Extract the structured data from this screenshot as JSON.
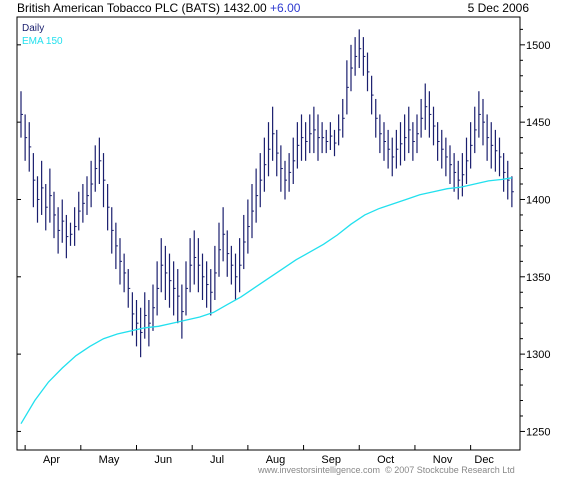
{
  "header": {
    "title": "British American Tobacco PLC (BATS)",
    "price": "1432.00",
    "change": "+6.00",
    "date": "5 Dec 2006"
  },
  "footer": {
    "left": "www.investorsintelligence.com",
    "right": "© 2007 Stockcube Research Ltd"
  },
  "chart_data": {
    "type": "line",
    "legend": [
      "Daily",
      "EMA 150"
    ],
    "legend_position": "top-left",
    "colors": {
      "daily": "#1a1f6e",
      "ema": "#22e0ee",
      "frame": "#000000"
    },
    "categories": [
      "Apr",
      "May",
      "Jun",
      "Jul",
      "Aug",
      "Sep",
      "Oct",
      "Nov",
      "Dec"
    ],
    "y_ticks": [
      1250,
      1300,
      1350,
      1400,
      1450,
      1500
    ],
    "ylim": [
      1238,
      1518
    ],
    "y_axis_side": "right",
    "grid": false,
    "series": [
      {
        "name": "Daily",
        "style": "ohlc bars",
        "points": [
          [
            0.0,
            1470,
            1440
          ],
          [
            0.6,
            1455,
            1425
          ],
          [
            1.2,
            1450,
            1418
          ],
          [
            1.8,
            1430,
            1395
          ],
          [
            2.4,
            1415,
            1385
          ],
          [
            3.0,
            1425,
            1390
          ],
          [
            3.6,
            1410,
            1380
          ],
          [
            4.2,
            1420,
            1385
          ],
          [
            4.8,
            1405,
            1375
          ],
          [
            5.4,
            1395,
            1365
          ],
          [
            6.0,
            1400,
            1372
          ],
          [
            6.6,
            1390,
            1362
          ],
          [
            7.2,
            1385,
            1370
          ],
          [
            7.8,
            1395,
            1370
          ],
          [
            8.4,
            1405,
            1380
          ],
          [
            9.0,
            1410,
            1385
          ],
          [
            9.6,
            1415,
            1390
          ],
          [
            10.2,
            1425,
            1395
          ],
          [
            10.8,
            1435,
            1405
          ],
          [
            11.4,
            1440,
            1410
          ],
          [
            12.0,
            1430,
            1395
          ],
          [
            12.6,
            1410,
            1380
          ],
          [
            13.2,
            1395,
            1365
          ],
          [
            13.8,
            1385,
            1355
          ],
          [
            14.4,
            1375,
            1345
          ],
          [
            15.0,
            1365,
            1340
          ],
          [
            15.6,
            1355,
            1330
          ],
          [
            16.2,
            1340,
            1312
          ],
          [
            16.8,
            1335,
            1305
          ],
          [
            17.4,
            1330,
            1298
          ],
          [
            18.0,
            1340,
            1310
          ],
          [
            18.6,
            1335,
            1305
          ],
          [
            19.2,
            1345,
            1315
          ],
          [
            19.8,
            1360,
            1325
          ],
          [
            20.4,
            1375,
            1340
          ],
          [
            21.0,
            1370,
            1335
          ],
          [
            21.6,
            1365,
            1330
          ],
          [
            22.2,
            1360,
            1325
          ],
          [
            22.8,
            1355,
            1320
          ],
          [
            23.4,
            1345,
            1310
          ],
          [
            24.0,
            1360,
            1325
          ],
          [
            24.6,
            1375,
            1340
          ],
          [
            25.2,
            1380,
            1345
          ],
          [
            25.8,
            1375,
            1340
          ],
          [
            26.4,
            1365,
            1335
          ],
          [
            27.0,
            1360,
            1330
          ],
          [
            27.6,
            1355,
            1325
          ],
          [
            28.2,
            1370,
            1335
          ],
          [
            28.8,
            1385,
            1350
          ],
          [
            29.4,
            1395,
            1360
          ],
          [
            30.0,
            1380,
            1350
          ],
          [
            30.6,
            1370,
            1345
          ],
          [
            31.2,
            1365,
            1335
          ],
          [
            31.8,
            1375,
            1340
          ],
          [
            32.4,
            1390,
            1355
          ],
          [
            33.0,
            1400,
            1365
          ],
          [
            33.6,
            1410,
            1375
          ],
          [
            34.2,
            1420,
            1385
          ],
          [
            34.8,
            1430,
            1395
          ],
          [
            35.4,
            1440,
            1405
          ],
          [
            36.0,
            1450,
            1415
          ],
          [
            36.6,
            1460,
            1425
          ],
          [
            37.2,
            1445,
            1415
          ],
          [
            37.8,
            1435,
            1405
          ],
          [
            38.4,
            1425,
            1400
          ],
          [
            39.0,
            1430,
            1405
          ],
          [
            39.6,
            1440,
            1410
          ],
          [
            40.2,
            1450,
            1420
          ],
          [
            40.8,
            1455,
            1425
          ],
          [
            41.4,
            1450,
            1425
          ],
          [
            42.0,
            1455,
            1430
          ],
          [
            42.6,
            1460,
            1430
          ],
          [
            43.2,
            1455,
            1425
          ],
          [
            43.8,
            1450,
            1430
          ],
          [
            44.4,
            1445,
            1430
          ],
          [
            45.0,
            1450,
            1432
          ],
          [
            45.6,
            1445,
            1428
          ],
          [
            46.2,
            1455,
            1435
          ],
          [
            46.8,
            1465,
            1440
          ],
          [
            47.4,
            1490,
            1455
          ],
          [
            48.0,
            1500,
            1470
          ],
          [
            48.6,
            1505,
            1480
          ],
          [
            49.2,
            1510,
            1485
          ],
          [
            49.8,
            1505,
            1480
          ],
          [
            50.4,
            1495,
            1470
          ],
          [
            51.0,
            1480,
            1455
          ],
          [
            51.6,
            1465,
            1440
          ],
          [
            52.2,
            1455,
            1430
          ],
          [
            52.8,
            1450,
            1425
          ],
          [
            53.4,
            1445,
            1420
          ],
          [
            54.0,
            1440,
            1415
          ],
          [
            54.6,
            1445,
            1420
          ],
          [
            55.2,
            1450,
            1422
          ],
          [
            55.8,
            1455,
            1425
          ],
          [
            56.4,
            1460,
            1430
          ],
          [
            57.0,
            1450,
            1425
          ],
          [
            57.6,
            1455,
            1430
          ],
          [
            58.2,
            1465,
            1440
          ],
          [
            58.8,
            1475,
            1445
          ],
          [
            59.4,
            1470,
            1440
          ],
          [
            60.0,
            1460,
            1435
          ],
          [
            60.6,
            1450,
            1425
          ],
          [
            61.2,
            1445,
            1420
          ],
          [
            61.8,
            1440,
            1415
          ],
          [
            62.4,
            1435,
            1410
          ],
          [
            63.0,
            1430,
            1405
          ],
          [
            63.6,
            1425,
            1400
          ],
          [
            64.2,
            1430,
            1402
          ],
          [
            64.8,
            1440,
            1410
          ],
          [
            65.4,
            1450,
            1420
          ],
          [
            66.0,
            1460,
            1430
          ],
          [
            66.6,
            1470,
            1440
          ],
          [
            67.2,
            1465,
            1435
          ],
          [
            67.8,
            1455,
            1425
          ],
          [
            68.4,
            1450,
            1420
          ],
          [
            69.0,
            1445,
            1418
          ],
          [
            69.6,
            1440,
            1415
          ],
          [
            70.2,
            1430,
            1405
          ],
          [
            70.8,
            1425,
            1400
          ],
          [
            71.4,
            1415,
            1395
          ]
        ]
      },
      {
        "name": "EMA 150",
        "style": "line",
        "points": [
          [
            0,
            1255
          ],
          [
            2,
            1270
          ],
          [
            4,
            1282
          ],
          [
            6,
            1291
          ],
          [
            8,
            1299
          ],
          [
            10,
            1305
          ],
          [
            12,
            1310
          ],
          [
            14,
            1313
          ],
          [
            16,
            1315
          ],
          [
            18,
            1317
          ],
          [
            20,
            1318
          ],
          [
            22,
            1320
          ],
          [
            24,
            1322
          ],
          [
            26,
            1324
          ],
          [
            28,
            1327
          ],
          [
            30,
            1332
          ],
          [
            32,
            1337
          ],
          [
            34,
            1343
          ],
          [
            36,
            1349
          ],
          [
            38,
            1355
          ],
          [
            40,
            1361
          ],
          [
            42,
            1366
          ],
          [
            44,
            1371
          ],
          [
            46,
            1377
          ],
          [
            48,
            1384
          ],
          [
            50,
            1390
          ],
          [
            52,
            1394
          ],
          [
            54,
            1397
          ],
          [
            56,
            1400
          ],
          [
            58,
            1403
          ],
          [
            60,
            1405
          ],
          [
            62,
            1407
          ],
          [
            64,
            1408
          ],
          [
            66,
            1410
          ],
          [
            68,
            1412
          ],
          [
            70,
            1413
          ],
          [
            71.4,
            1414
          ]
        ]
      }
    ]
  }
}
